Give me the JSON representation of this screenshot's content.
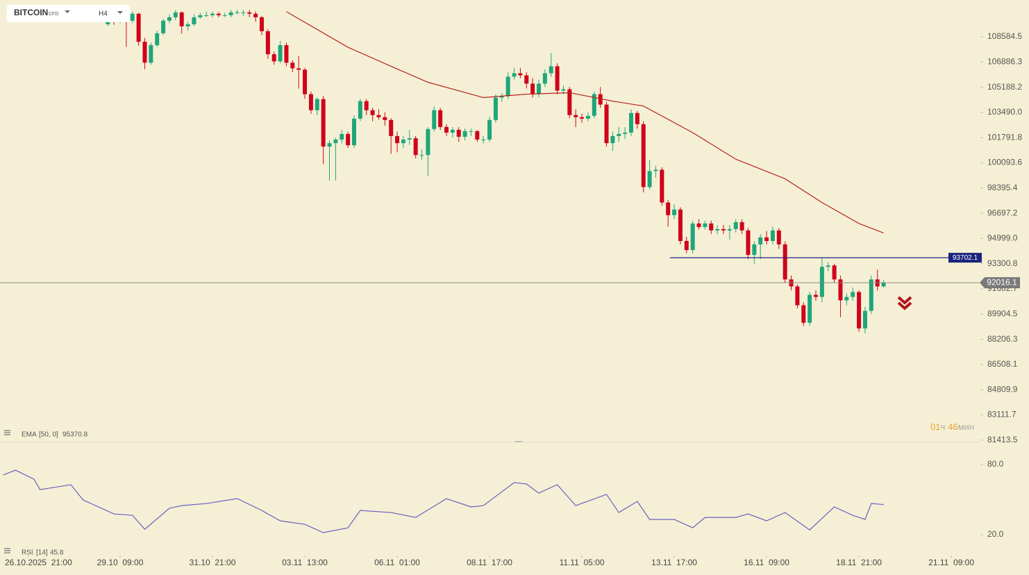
{
  "header": {
    "symbol": "BITCOIN",
    "badge": "CFD",
    "timeframe": "H4"
  },
  "timer": {
    "hours": "01",
    "hours_unit": "ч",
    "minutes": "46",
    "minutes_unit": "мин"
  },
  "chart_data": [
    {
      "type": "candlestick",
      "up_color": "#1fa67a",
      "down_color": "#d0021b",
      "ylim": [
        81310,
        111064
      ],
      "yticks": [
        108584.5,
        106886.3,
        105188.2,
        {
          "value": 103490.0,
          "label": "103490.0"
        },
        101791.8,
        100093.6,
        98395.4,
        96697.2,
        {
          "value": 94999.0,
          "label": "94999.0"
        },
        93300.8,
        91602.7,
        89904.5,
        88206.3,
        86508.1,
        84809.9,
        83111.7,
        81413.5
      ],
      "xticks": [
        {
          "value": -13,
          "label": "26.10.2025  21:00"
        },
        {
          "value": 2,
          "label": "29.10  09:00"
        },
        {
          "value": 17,
          "label": "31.10  21:00"
        },
        {
          "value": 32,
          "label": "03.11  13:00"
        },
        {
          "value": 47,
          "label": "06.11  01:00"
        },
        {
          "value": 62,
          "label": "08.11  17:00"
        },
        {
          "value": 77,
          "label": "11.11  05:00"
        },
        {
          "value": 92,
          "label": "13.11  17:00"
        },
        {
          "value": 107,
          "label": "16.11  09:00"
        },
        {
          "value": 122,
          "label": "18.11  21:00"
        },
        {
          "value": 137,
          "label": "21.11  09:00"
        }
      ],
      "hline": {
        "value": 93702.1,
        "color": "#1a237e"
      },
      "last_price": 92016.1,
      "ema": {
        "name": "EMA",
        "params": "[50, 0]",
        "value": 95370.8,
        "color": "#b5231e",
        "x": [
          29,
          39,
          46,
          52,
          61,
          68,
          75,
          82,
          87,
          95,
          102,
          110,
          116,
          122,
          126
        ],
        "values": [
          110280,
          107880,
          106600,
          105520,
          104490,
          104720,
          104820,
          104250,
          103920,
          102130,
          100340,
          99020,
          97420,
          96010,
          95370.8
        ]
      },
      "candles": [
        [
          109430,
          110000,
          109300,
          109760
        ],
        [
          109760,
          109900,
          109400,
          109670
        ],
        [
          109670,
          110100,
          109500,
          109900
        ],
        [
          109900,
          110000,
          107900,
          109670
        ],
        [
          109670,
          110300,
          109500,
          110140
        ],
        [
          110140,
          110200,
          108000,
          108250
        ],
        [
          108250,
          108500,
          106400,
          106840
        ],
        [
          106840,
          108200,
          106700,
          108020
        ],
        [
          108020,
          109000,
          107900,
          108820
        ],
        [
          108820,
          109800,
          108700,
          109670
        ],
        [
          109670,
          110100,
          109500,
          109900
        ],
        [
          109900,
          110400,
          109700,
          110230
        ],
        [
          110230,
          110300,
          108800,
          109290
        ],
        [
          109290,
          109600,
          109000,
          109430
        ],
        [
          109430,
          110100,
          109300,
          109900
        ],
        [
          109900,
          110200,
          109800,
          110040
        ],
        [
          110040,
          110300,
          109900,
          110040
        ],
        [
          110040,
          110300,
          109900,
          110140
        ],
        [
          110140,
          110250,
          109900,
          110040
        ],
        [
          110040,
          110200,
          109900,
          110040
        ],
        [
          110040,
          110400,
          109900,
          110230
        ],
        [
          110230,
          110400,
          110100,
          110230
        ],
        [
          110230,
          110400,
          110000,
          110230
        ],
        [
          110230,
          110400,
          109900,
          110140
        ],
        [
          110140,
          110300,
          109600,
          109900
        ],
        [
          109900,
          110000,
          108700,
          108960
        ],
        [
          108960,
          109100,
          107100,
          107410
        ],
        [
          107410,
          107600,
          106700,
          106930
        ],
        [
          106930,
          108300,
          106800,
          108020
        ],
        [
          108020,
          108200,
          106600,
          106840
        ],
        [
          106840,
          107000,
          106200,
          106460
        ],
        [
          106460,
          107300,
          105100,
          106370
        ],
        [
          106370,
          106500,
          104400,
          104720
        ],
        [
          104720,
          104900,
          103400,
          103640
        ],
        [
          103640,
          104500,
          103300,
          104390
        ],
        [
          104390,
          104600,
          100000,
          101190
        ],
        [
          101190,
          101600,
          98900,
          101420
        ],
        [
          101420,
          101800,
          98900,
          101660
        ],
        [
          101660,
          102300,
          101400,
          102040
        ],
        [
          102040,
          102200,
          101100,
          101280
        ],
        [
          101280,
          103300,
          101100,
          103070
        ],
        [
          103070,
          104400,
          102900,
          104250
        ],
        [
          104250,
          104400,
          103300,
          103640
        ],
        [
          103640,
          103800,
          102900,
          103310
        ],
        [
          103310,
          103700,
          103000,
          103170
        ],
        [
          103170,
          103500,
          102600,
          102980
        ],
        [
          102980,
          103100,
          100700,
          101900
        ],
        [
          101900,
          102200,
          100800,
          101420
        ],
        [
          101420,
          101900,
          101100,
          101660
        ],
        [
          101660,
          102300,
          101300,
          101750
        ],
        [
          101750,
          101900,
          100400,
          100620
        ],
        [
          100620,
          101000,
          100300,
          100620
        ],
        [
          100620,
          102500,
          99200,
          102370
        ],
        [
          102370,
          103900,
          102200,
          103640
        ],
        [
          103640,
          103800,
          102300,
          102510
        ],
        [
          102510,
          102700,
          101900,
          102130
        ],
        [
          102130,
          102500,
          101800,
          102320
        ],
        [
          102320,
          102500,
          101500,
          101850
        ],
        [
          101850,
          102400,
          101600,
          102230
        ],
        [
          102230,
          102400,
          101900,
          102230
        ],
        [
          102230,
          102300,
          101500,
          101660
        ],
        [
          101660,
          101900,
          101400,
          101660
        ],
        [
          101660,
          103200,
          101500,
          102980
        ],
        [
          102980,
          104700,
          102800,
          104490
        ],
        [
          104490,
          104800,
          104200,
          104580
        ],
        [
          104580,
          106200,
          104400,
          105900
        ],
        [
          105900,
          106500,
          105700,
          106130
        ],
        [
          106130,
          106500,
          105800,
          105990
        ],
        [
          105990,
          106200,
          105100,
          105430
        ],
        [
          105430,
          105800,
          104500,
          104720
        ],
        [
          104720,
          105700,
          104500,
          105430
        ],
        [
          105430,
          106400,
          105200,
          106130
        ],
        [
          106130,
          107500,
          105900,
          106600
        ],
        [
          106600,
          106800,
          104700,
          104960
        ],
        [
          104960,
          105300,
          104700,
          105050
        ],
        [
          105050,
          105200,
          103100,
          103310
        ],
        [
          103310,
          103700,
          102500,
          103170
        ],
        [
          103170,
          103400,
          102800,
          103070
        ],
        [
          103070,
          103500,
          102900,
          103260
        ],
        [
          103260,
          104900,
          103100,
          104720
        ],
        [
          104720,
          105200,
          103800,
          104020
        ],
        [
          104020,
          104200,
          101200,
          101420
        ],
        [
          101420,
          102200,
          100900,
          101900
        ],
        [
          101900,
          102500,
          101500,
          102040
        ],
        [
          102040,
          102500,
          101700,
          102130
        ],
        [
          102130,
          103700,
          101900,
          103450
        ],
        [
          103450,
          103600,
          102400,
          102700
        ],
        [
          102700,
          102900,
          98100,
          98460
        ],
        [
          98460,
          100300,
          98300,
          99540
        ],
        [
          99540,
          99900,
          99100,
          99630
        ],
        [
          99630,
          99800,
          97200,
          97420
        ],
        [
          97420,
          97600,
          95800,
          96570
        ],
        [
          96570,
          97300,
          96300,
          96950
        ],
        [
          96950,
          97100,
          94600,
          94830
        ],
        [
          94830,
          95100,
          94000,
          94220
        ],
        [
          94220,
          96200,
          94000,
          96010
        ],
        [
          96010,
          96300,
          95600,
          95770
        ],
        [
          95770,
          96200,
          95600,
          96010
        ],
        [
          96010,
          96200,
          95300,
          95540
        ],
        [
          95540,
          95900,
          95300,
          95630
        ],
        [
          95630,
          95900,
          95300,
          95540
        ],
        [
          95540,
          95900,
          94900,
          95630
        ],
        [
          95630,
          96300,
          95400,
          96100
        ],
        [
          96100,
          96300,
          95300,
          95540
        ],
        [
          95540,
          95700,
          93600,
          93890
        ],
        [
          93890,
          94800,
          93300,
          94600
        ],
        [
          94600,
          95300,
          93600,
          95070
        ],
        [
          95070,
          95500,
          94600,
          94830
        ],
        [
          94830,
          95800,
          94600,
          95540
        ],
        [
          95540,
          95700,
          94300,
          94600
        ],
        [
          94600,
          94800,
          92000,
          92240
        ],
        [
          92240,
          92500,
          91500,
          91770
        ],
        [
          91770,
          91900,
          90300,
          90500
        ],
        [
          90500,
          90700,
          89100,
          89320
        ],
        [
          89320,
          91400,
          89100,
          91200
        ],
        [
          91200,
          91500,
          90800,
          91060
        ],
        [
          91060,
          93700,
          90700,
          93090
        ],
        [
          93090,
          93400,
          92800,
          93180
        ],
        [
          93180,
          93300,
          92000,
          92240
        ],
        [
          92240,
          92500,
          89700,
          90830
        ],
        [
          90830,
          91300,
          90500,
          91060
        ],
        [
          91060,
          91700,
          90800,
          91390
        ],
        [
          91390,
          91500,
          88700,
          88940
        ],
        [
          88940,
          90400,
          88600,
          90120
        ],
        [
          90120,
          92500,
          89900,
          92240
        ],
        [
          92240,
          92900,
          91500,
          91770
        ],
        [
          91770,
          92200,
          91700,
          92016.1
        ]
      ]
    },
    {
      "type": "line",
      "name": "RSI",
      "params": "[14]",
      "value": 45.8,
      "color": "#6a5fc1",
      "ylim": [
        2.2,
        99.6
      ],
      "yticks": [
        {
          "value": 80,
          "label": "80.0"
        },
        {
          "value": 20,
          "label": "20.0"
        }
      ],
      "x": [
        -17,
        -15,
        -12,
        -11,
        -6,
        -4,
        1,
        4,
        6,
        10,
        12,
        16,
        21,
        25,
        28,
        32,
        35,
        39,
        41,
        46,
        50,
        55,
        59,
        61,
        66,
        68,
        70,
        73,
        76,
        81,
        83,
        86,
        88,
        92,
        95,
        97,
        102,
        104,
        107,
        110,
        114,
        118,
        121,
        123,
        124,
        126
      ],
      "values": [
        71.1,
        75.2,
        67.5,
        58.6,
        62.8,
        49.7,
        37.8,
        36.6,
        24.7,
        42.6,
        44.9,
        46.7,
        50.9,
        40.8,
        31.9,
        28.9,
        21.8,
        25.9,
        40.8,
        39.0,
        34.8,
        50.9,
        43.8,
        44.9,
        64.6,
        63.4,
        55.6,
        62.8,
        44.9,
        54.5,
        39.0,
        48.5,
        33.1,
        33.1,
        25.9,
        34.8,
        34.8,
        37.8,
        31.9,
        39.0,
        24.1,
        43.8,
        36.6,
        33.1,
        46.7,
        45.8
      ]
    }
  ]
}
